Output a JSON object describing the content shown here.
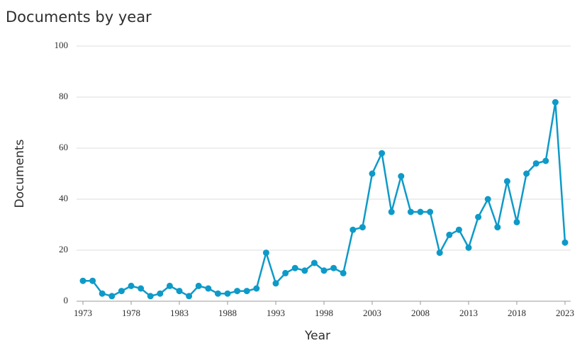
{
  "chart_data": {
    "type": "line",
    "title": "Documents by year",
    "x_label": "Year",
    "y_label": "Documents",
    "x": [
      1973,
      1974,
      1975,
      1976,
      1977,
      1978,
      1979,
      1980,
      1981,
      1982,
      1983,
      1984,
      1985,
      1986,
      1987,
      1988,
      1989,
      1990,
      1991,
      1992,
      1993,
      1994,
      1995,
      1996,
      1997,
      1998,
      1999,
      2000,
      2001,
      2002,
      2003,
      2004,
      2005,
      2006,
      2007,
      2008,
      2009,
      2010,
      2011,
      2012,
      2013,
      2014,
      2015,
      2016,
      2017,
      2018,
      2019,
      2020,
      2021,
      2022,
      2023
    ],
    "series": [
      {
        "name": "Documents",
        "color": "#0e9ac8",
        "values": [
          8,
          8,
          3,
          2,
          4,
          6,
          5,
          2,
          3,
          6,
          4,
          2,
          6,
          5,
          3,
          3,
          4,
          4,
          5,
          19,
          7,
          11,
          13,
          12,
          15,
          12,
          13,
          11,
          28,
          29,
          50,
          58,
          35,
          49,
          35,
          35,
          35,
          19,
          26,
          28,
          21,
          33,
          40,
          29,
          47,
          31,
          50,
          54,
          55,
          78,
          23
        ]
      }
    ],
    "xlim": [
      1973,
      2023
    ],
    "xticks": [
      1973,
      1978,
      1983,
      1988,
      1993,
      1998,
      2003,
      2008,
      2013,
      2018,
      2023
    ],
    "ylim": [
      0,
      100
    ],
    "yticks": [
      0,
      20,
      40,
      60,
      80,
      100
    ],
    "grid": true
  }
}
